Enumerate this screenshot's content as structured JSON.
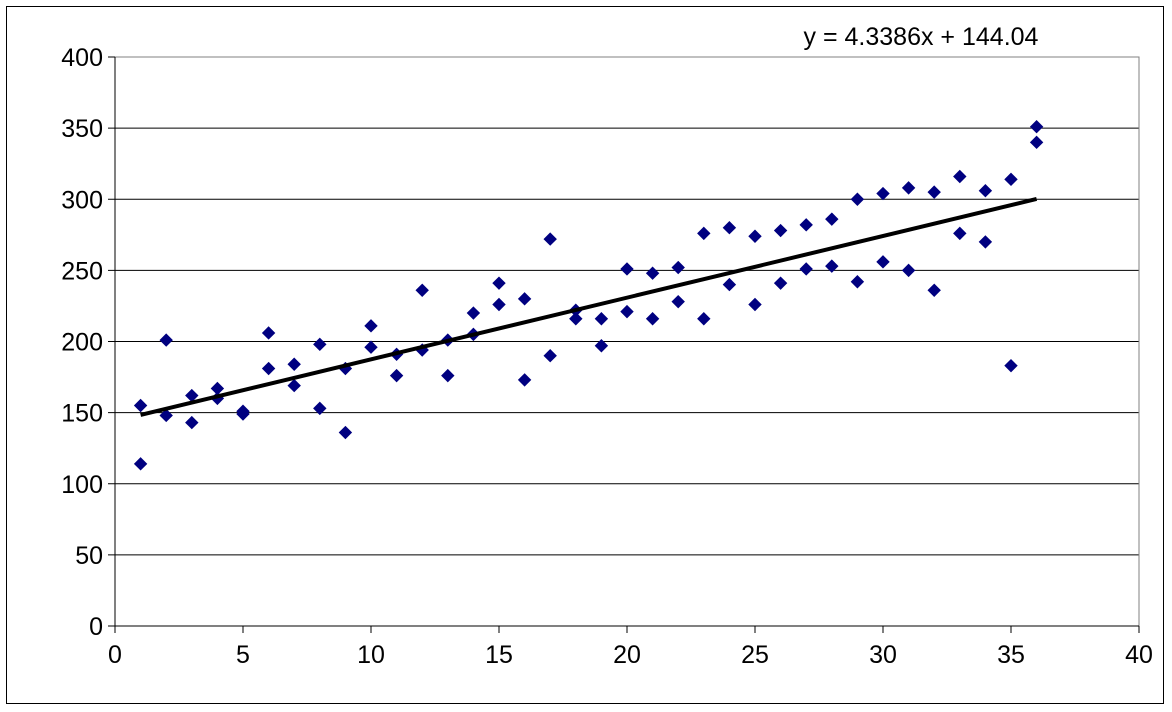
{
  "chart_data": {
    "type": "scatter",
    "title": "",
    "xlabel": "",
    "ylabel": "",
    "xlim": [
      0,
      40
    ],
    "ylim": [
      0,
      400
    ],
    "xticks": [
      "0",
      "5",
      "10",
      "15",
      "20",
      "25",
      "30",
      "35",
      "40"
    ],
    "yticks": [
      "0",
      "50",
      "100",
      "150",
      "200",
      "250",
      "300",
      "350",
      "400"
    ],
    "grid": "horizontal",
    "legend": "none",
    "marker": "diamond",
    "marker_color": "#000080",
    "series": [
      {
        "points": [
          [
            1,
            155
          ],
          [
            1,
            114
          ],
          [
            2,
            201
          ],
          [
            2,
            148
          ],
          [
            3,
            162
          ],
          [
            3,
            143
          ],
          [
            4,
            167
          ],
          [
            4,
            160
          ],
          [
            5,
            151
          ],
          [
            5,
            149
          ],
          [
            6,
            206
          ],
          [
            6,
            181
          ],
          [
            7,
            184
          ],
          [
            7,
            169
          ],
          [
            8,
            198
          ],
          [
            8,
            153
          ],
          [
            9,
            181
          ],
          [
            9,
            136
          ],
          [
            10,
            211
          ],
          [
            10,
            196
          ],
          [
            11,
            191
          ],
          [
            11,
            176
          ],
          [
            12,
            236
          ],
          [
            12,
            194
          ],
          [
            13,
            201
          ],
          [
            13,
            176
          ],
          [
            14,
            220
          ],
          [
            14,
            205
          ],
          [
            15,
            241
          ],
          [
            15,
            226
          ],
          [
            16,
            230
          ],
          [
            16,
            173
          ],
          [
            17,
            272
          ],
          [
            17,
            190
          ],
          [
            18,
            222
          ],
          [
            18,
            216
          ],
          [
            19,
            216
          ],
          [
            19,
            197
          ],
          [
            20,
            251
          ],
          [
            20,
            221
          ],
          [
            21,
            248
          ],
          [
            21,
            216
          ],
          [
            22,
            252
          ],
          [
            22,
            228
          ],
          [
            23,
            276
          ],
          [
            23,
            216
          ],
          [
            24,
            280
          ],
          [
            24,
            240
          ],
          [
            25,
            274
          ],
          [
            25,
            226
          ],
          [
            26,
            278
          ],
          [
            26,
            241
          ],
          [
            27,
            282
          ],
          [
            27,
            251
          ],
          [
            28,
            286
          ],
          [
            28,
            253
          ],
          [
            29,
            300
          ],
          [
            29,
            242
          ],
          [
            30,
            304
          ],
          [
            30,
            256
          ],
          [
            31,
            308
          ],
          [
            31,
            250
          ],
          [
            32,
            305
          ],
          [
            32,
            236
          ],
          [
            33,
            316
          ],
          [
            33,
            276
          ],
          [
            34,
            306
          ],
          [
            34,
            270
          ],
          [
            35,
            314
          ],
          [
            35,
            183
          ],
          [
            36,
            351
          ],
          [
            36,
            340
          ]
        ]
      }
    ],
    "trendline": {
      "type": "linear",
      "slope": 4.3386,
      "intercept": 144.04,
      "x_range": [
        1,
        36
      ],
      "color": "#000000",
      "equation_label": "y = 4.3386x + 144.04"
    }
  }
}
